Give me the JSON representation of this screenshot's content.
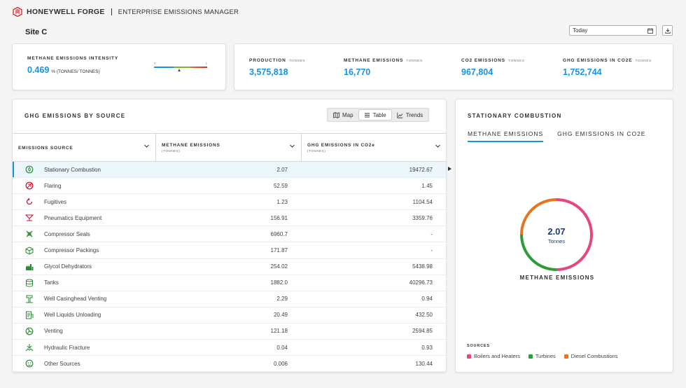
{
  "header": {
    "brand": "HONEYWELL FORGE",
    "app_name": "ENTERPRISE EMISSIONS MANAGER"
  },
  "site": {
    "name": "Site C"
  },
  "date_filter": {
    "value": "Today"
  },
  "intensity": {
    "label": "METHANE EMISSIONS INTENSITY",
    "value": "0.469",
    "unit": "% (TONNES/ TONNES)",
    "gauge_min": "0",
    "gauge_max": "1"
  },
  "kpis": [
    {
      "label": "PRODUCTION",
      "unit": "TONNES",
      "value": "3,575,818"
    },
    {
      "label": "METHANE EMISSIONS",
      "unit": "TONNES",
      "value": "16,770"
    },
    {
      "label": "CO2 EMISSIONS",
      "unit": "TONNES",
      "value": "967,804"
    },
    {
      "label": "GHG EMISSIONS IN CO2E",
      "unit": "TONNES",
      "value": "1,752,744"
    }
  ],
  "ghg_panel": {
    "title": "GHG EMISSIONS BY SOURCE",
    "views": [
      {
        "label": "Map",
        "icon": "map-icon"
      },
      {
        "label": "Table",
        "icon": "list-icon"
      },
      {
        "label": "Trends",
        "icon": "chart-icon"
      }
    ],
    "active_view": "Table",
    "columns": [
      {
        "label": "EMISSIONS SOURCE",
        "sub": ""
      },
      {
        "label": "METHANE EMISSIONS",
        "sub": "(TONNES)"
      },
      {
        "label": "GHG EMISSIONS IN CO2e",
        "sub": "(TONNES)"
      }
    ],
    "rows": [
      {
        "icon": "combustion-icon",
        "name": "Stationary Combustion",
        "methane": "2.07",
        "ghg": "19472.67"
      },
      {
        "icon": "flaring-icon",
        "name": "Flaring",
        "methane": "52.59",
        "ghg": "1.45"
      },
      {
        "icon": "fugitives-icon",
        "name": "Fugitives",
        "methane": "1.23",
        "ghg": "1104.54"
      },
      {
        "icon": "pneumatics-icon",
        "name": "Pneumatics Equipment",
        "methane": "156.91",
        "ghg": "3359.76"
      },
      {
        "icon": "compressor-seals-icon",
        "name": "Compressor Seals",
        "methane": "6960.7",
        "ghg": "-"
      },
      {
        "icon": "compressor-packings-icon",
        "name": "Compressor Packings",
        "methane": "171.87",
        "ghg": "-"
      },
      {
        "icon": "glycol-icon",
        "name": "Glycol Dehydrators",
        "methane": "254.02",
        "ghg": "5438.98"
      },
      {
        "icon": "tanks-icon",
        "name": "Tanks",
        "methane": "1882.0",
        "ghg": "40296.73"
      },
      {
        "icon": "casinghead-icon",
        "name": "Well Casinghead Venting",
        "methane": "2.29",
        "ghg": "0.94"
      },
      {
        "icon": "liquids-unloading-icon",
        "name": "Well Liquids Unloading",
        "methane": "20.49",
        "ghg": "432.50"
      },
      {
        "icon": "venting-icon",
        "name": "Venting",
        "methane": "121.18",
        "ghg": "2594.85"
      },
      {
        "icon": "hydraulic-fracture-icon",
        "name": "Hydraulic Fracture",
        "methane": "0.04",
        "ghg": "0.93"
      },
      {
        "icon": "other-sources-icon",
        "name": "Other Sources",
        "methane": "0.006",
        "ghg": "130.44"
      }
    ]
  },
  "stationary_panel": {
    "title": "STATIONARY COMBUSTION",
    "tabs": [
      "METHANE EMISSIONS",
      "GHG EMISSIONS IN CO2e"
    ],
    "active_tab": 0,
    "donut_value": "2.07",
    "donut_unit": "Tonnes",
    "donut_caption": "METHANE EMISSIONS",
    "sources_title": "SOURCES",
    "legend": [
      {
        "label": "Boilers and Heaters",
        "color": "#e8457e"
      },
      {
        "label": "Turbines",
        "color": "#2a9d3a"
      },
      {
        "label": "Diesel Combustions",
        "color": "#e8741f"
      }
    ],
    "donut_shares": [
      0.5,
      0.25,
      0.25
    ]
  },
  "colors": {
    "accent": "#1792e5",
    "icon_red": "#c8102e",
    "icon_green": "#2a8a35"
  }
}
